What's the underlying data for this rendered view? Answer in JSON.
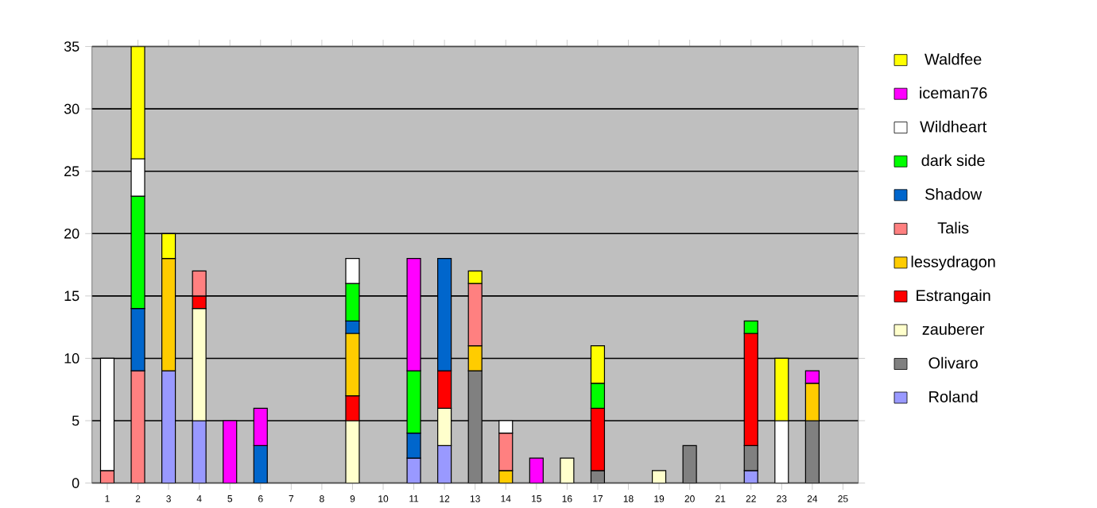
{
  "chart_data": {
    "type": "bar",
    "stacked": true,
    "grid": "y",
    "legend": "right",
    "categories": [
      "1",
      "2",
      "3",
      "4",
      "5",
      "6",
      "7",
      "8",
      "9",
      "10",
      "11",
      "12",
      "13",
      "14",
      "15",
      "16",
      "17",
      "18",
      "19",
      "20",
      "21",
      "22",
      "23",
      "24",
      "25"
    ],
    "ylim": [
      0,
      35
    ],
    "yticks": [
      0,
      5,
      10,
      15,
      20,
      25,
      30,
      35
    ],
    "series": [
      {
        "name": "Roland",
        "color": "#9999ff",
        "values": [
          null,
          null,
          9,
          5,
          null,
          null,
          null,
          null,
          null,
          null,
          2,
          3,
          null,
          null,
          null,
          null,
          null,
          null,
          null,
          null,
          null,
          1,
          null,
          null,
          null
        ]
      },
      {
        "name": "Olivaro",
        "color": "#808080",
        "values": [
          null,
          null,
          null,
          null,
          null,
          null,
          null,
          null,
          null,
          null,
          null,
          null,
          9,
          null,
          null,
          null,
          1,
          null,
          null,
          3,
          null,
          2,
          null,
          5,
          null
        ]
      },
      {
        "name": "zauberer",
        "color": "#ffffcc",
        "values": [
          null,
          null,
          null,
          9,
          null,
          null,
          null,
          null,
          5,
          null,
          null,
          3,
          null,
          null,
          null,
          2,
          null,
          null,
          1,
          null,
          null,
          null,
          null,
          null,
          null
        ]
      },
      {
        "name": "Estrangain",
        "color": "#ff0000",
        "values": [
          null,
          null,
          null,
          1,
          null,
          null,
          null,
          null,
          2,
          null,
          null,
          3,
          null,
          null,
          null,
          null,
          5,
          null,
          null,
          null,
          null,
          9,
          null,
          null,
          null
        ]
      },
      {
        "name": "lessydragon",
        "color": "#ffcc00",
        "values": [
          null,
          null,
          9,
          null,
          null,
          null,
          null,
          null,
          5,
          null,
          null,
          null,
          2,
          1,
          null,
          null,
          null,
          null,
          null,
          null,
          null,
          null,
          null,
          3,
          null
        ]
      },
      {
        "name": "Talis",
        "color": "#ff8080",
        "values": [
          1,
          9,
          null,
          2,
          null,
          null,
          null,
          null,
          null,
          null,
          null,
          null,
          5,
          3,
          null,
          null,
          null,
          null,
          null,
          null,
          null,
          null,
          null,
          null,
          null
        ]
      },
      {
        "name": "Shadow",
        "color": "#0066cc",
        "values": [
          null,
          5,
          null,
          null,
          null,
          3,
          null,
          null,
          1,
          null,
          2,
          9,
          null,
          null,
          null,
          null,
          null,
          null,
          null,
          null,
          null,
          null,
          null,
          null,
          null
        ]
      },
      {
        "name": "dark side",
        "color": "#00ff00",
        "values": [
          null,
          9,
          null,
          null,
          null,
          null,
          null,
          null,
          3,
          null,
          5,
          null,
          null,
          null,
          null,
          null,
          2,
          null,
          null,
          null,
          null,
          1,
          null,
          null,
          null
        ]
      },
      {
        "name": "Wildheart",
        "color": "#ffffff",
        "values": [
          9,
          3,
          null,
          null,
          null,
          null,
          null,
          null,
          2,
          null,
          null,
          null,
          null,
          1,
          null,
          null,
          null,
          null,
          null,
          null,
          null,
          null,
          5,
          null,
          null
        ]
      },
      {
        "name": "iceman76",
        "color": "#ff00ff",
        "values": [
          null,
          null,
          null,
          null,
          5,
          3,
          null,
          null,
          null,
          null,
          9,
          null,
          null,
          null,
          2,
          null,
          null,
          null,
          null,
          null,
          null,
          null,
          null,
          1,
          null
        ]
      },
      {
        "name": "Waldfee",
        "color": "#ffff00",
        "values": [
          null,
          9,
          2,
          null,
          null,
          null,
          null,
          null,
          null,
          null,
          null,
          null,
          1,
          null,
          null,
          null,
          3,
          null,
          null,
          null,
          null,
          null,
          5,
          null,
          null
        ]
      }
    ]
  }
}
